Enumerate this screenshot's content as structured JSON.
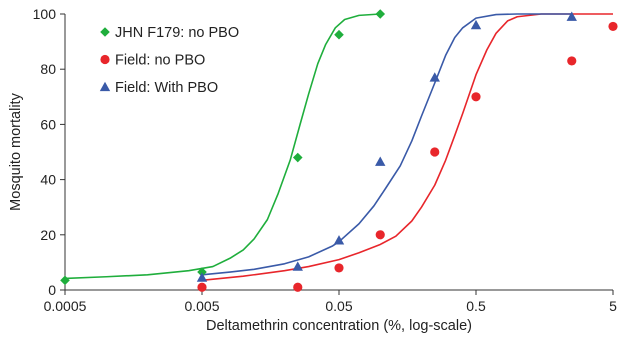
{
  "chart_data": {
    "type": "scatter",
    "title": "",
    "xlabel": "Deltamethrin concentration (%, log-scale)",
    "ylabel": "Mosquito mortality",
    "x_scale": "log",
    "xlim": [
      0.0005,
      5
    ],
    "ylim": [
      0,
      100
    ],
    "x_ticks": [
      0.0005,
      0.005,
      0.05,
      0.5,
      5
    ],
    "x_tick_labels": [
      "0.0005",
      "0.005",
      "0.05",
      "0.5",
      "5"
    ],
    "y_ticks": [
      0,
      20,
      40,
      60,
      80,
      100
    ],
    "y_tick_labels": [
      "0",
      "20",
      "40",
      "60",
      "80",
      "100"
    ],
    "grid": false,
    "legend_position": "top-left",
    "series": [
      {
        "name": "JHN F179: no PBO",
        "color": "#1fae3c",
        "marker": "diamond",
        "points": [
          {
            "x": 0.0005,
            "y": 3.5
          },
          {
            "x": 0.005,
            "y": 6.5
          },
          {
            "x": 0.025,
            "y": 48
          },
          {
            "x": 0.05,
            "y": 92.5
          },
          {
            "x": 0.1,
            "y": 100
          }
        ],
        "fit_curve": [
          {
            "x": 0.0005,
            "y": 4.2
          },
          {
            "x": 0.001,
            "y": 4.8
          },
          {
            "x": 0.002,
            "y": 5.5
          },
          {
            "x": 0.004,
            "y": 7.0
          },
          {
            "x": 0.006,
            "y": 8.5
          },
          {
            "x": 0.008,
            "y": 11.5
          },
          {
            "x": 0.01,
            "y": 14.5
          },
          {
            "x": 0.012,
            "y": 18.5
          },
          {
            "x": 0.015,
            "y": 25.5
          },
          {
            "x": 0.018,
            "y": 35
          },
          {
            "x": 0.022,
            "y": 47
          },
          {
            "x": 0.026,
            "y": 60
          },
          {
            "x": 0.03,
            "y": 71
          },
          {
            "x": 0.035,
            "y": 82
          },
          {
            "x": 0.04,
            "y": 89
          },
          {
            "x": 0.047,
            "y": 95
          },
          {
            "x": 0.055,
            "y": 98
          },
          {
            "x": 0.07,
            "y": 99.5
          },
          {
            "x": 0.1,
            "y": 100
          }
        ]
      },
      {
        "name": "Field: no PBO",
        "color": "#e8262b",
        "marker": "circle",
        "points": [
          {
            "x": 0.005,
            "y": 1
          },
          {
            "x": 0.025,
            "y": 1
          },
          {
            "x": 0.05,
            "y": 8
          },
          {
            "x": 0.1,
            "y": 20
          },
          {
            "x": 0.25,
            "y": 50
          },
          {
            "x": 0.5,
            "y": 70
          },
          {
            "x": 2.5,
            "y": 83
          },
          {
            "x": 5,
            "y": 95.5
          }
        ],
        "fit_curve": [
          {
            "x": 0.005,
            "y": 3.5
          },
          {
            "x": 0.01,
            "y": 5.0
          },
          {
            "x": 0.02,
            "y": 7.0
          },
          {
            "x": 0.03,
            "y": 8.5
          },
          {
            "x": 0.05,
            "y": 11
          },
          {
            "x": 0.07,
            "y": 13.5
          },
          {
            "x": 0.1,
            "y": 16.5
          },
          {
            "x": 0.13,
            "y": 19.5
          },
          {
            "x": 0.17,
            "y": 25
          },
          {
            "x": 0.2,
            "y": 30
          },
          {
            "x": 0.25,
            "y": 38
          },
          {
            "x": 0.3,
            "y": 47
          },
          {
            "x": 0.35,
            "y": 56
          },
          {
            "x": 0.4,
            "y": 64
          },
          {
            "x": 0.5,
            "y": 78
          },
          {
            "x": 0.6,
            "y": 87
          },
          {
            "x": 0.7,
            "y": 93
          },
          {
            "x": 0.85,
            "y": 97.5
          },
          {
            "x": 1.0,
            "y": 99
          },
          {
            "x": 1.5,
            "y": 100
          },
          {
            "x": 5,
            "y": 100
          }
        ]
      },
      {
        "name": "Field: With PBO",
        "color": "#3a5aa8",
        "marker": "triangle",
        "points": [
          {
            "x": 0.005,
            "y": 4.5
          },
          {
            "x": 0.025,
            "y": 8.5
          },
          {
            "x": 0.05,
            "y": 18
          },
          {
            "x": 0.1,
            "y": 46.5
          },
          {
            "x": 0.25,
            "y": 77
          },
          {
            "x": 0.5,
            "y": 96
          },
          {
            "x": 2.5,
            "y": 99
          }
        ],
        "fit_curve": [
          {
            "x": 0.005,
            "y": 5.5
          },
          {
            "x": 0.008,
            "y": 6.5
          },
          {
            "x": 0.012,
            "y": 7.5
          },
          {
            "x": 0.02,
            "y": 9.5
          },
          {
            "x": 0.03,
            "y": 12
          },
          {
            "x": 0.045,
            "y": 16
          },
          {
            "x": 0.05,
            "y": 17.5
          },
          {
            "x": 0.07,
            "y": 24
          },
          {
            "x": 0.09,
            "y": 30.5
          },
          {
            "x": 0.11,
            "y": 37
          },
          {
            "x": 0.14,
            "y": 45
          },
          {
            "x": 0.17,
            "y": 54
          },
          {
            "x": 0.2,
            "y": 63
          },
          {
            "x": 0.25,
            "y": 75
          },
          {
            "x": 0.3,
            "y": 85
          },
          {
            "x": 0.35,
            "y": 91.5
          },
          {
            "x": 0.4,
            "y": 95
          },
          {
            "x": 0.5,
            "y": 98.5
          },
          {
            "x": 0.7,
            "y": 99.8
          },
          {
            "x": 1.0,
            "y": 100
          },
          {
            "x": 2.5,
            "y": 100
          }
        ]
      }
    ]
  }
}
